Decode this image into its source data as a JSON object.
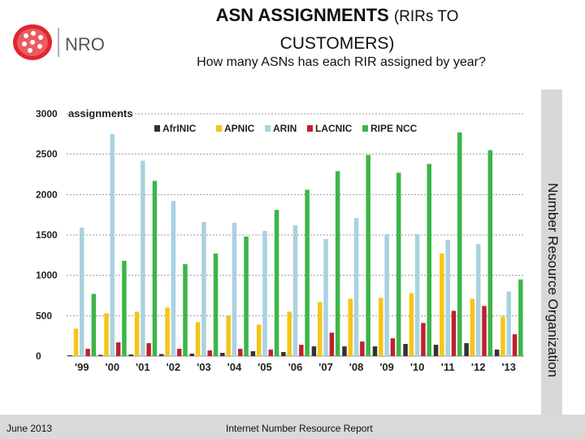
{
  "header": {
    "logo_text": "NRO",
    "title_line1_main": "ASN ASSIGNMENTS",
    "title_line1_small": "(RIRs TO",
    "title_line2": "CUSTOMERS)",
    "subtitle": "How many ASNs has each RIR assigned by year?"
  },
  "side_label": "Number Resource Organization",
  "footer": {
    "date": "June 2013",
    "report": "Internet Number Resource Report"
  },
  "colors": {
    "AfriNIC": "#333333",
    "APNIC": "#f5c518",
    "ARIN": "#a9d2e0",
    "LACNIC": "#c0202e",
    "RIPE NCC": "#3db54a"
  },
  "chart_data": {
    "type": "bar",
    "ylabel": "assignments",
    "xlabel": "",
    "ylim": [
      0,
      3000
    ],
    "yticks": [
      0,
      500,
      1000,
      1500,
      2000,
      2500,
      3000
    ],
    "grid": true,
    "legend_position": "top",
    "categories": [
      "'99",
      "'00",
      "'01",
      "'02",
      "'03",
      "'04",
      "'05",
      "'06",
      "'07",
      "'08",
      "'09",
      "'10",
      "'11",
      "'12",
      "'13"
    ],
    "series": [
      {
        "name": "AfrINIC",
        "values": [
          10,
          15,
          20,
          25,
          30,
          40,
          60,
          50,
          120,
          120,
          120,
          150,
          140,
          160,
          80
        ]
      },
      {
        "name": "APNIC",
        "values": [
          340,
          530,
          550,
          600,
          420,
          500,
          390,
          550,
          670,
          710,
          720,
          780,
          1270,
          710,
          490
        ]
      },
      {
        "name": "ARIN",
        "values": [
          1590,
          2750,
          2420,
          1920,
          1660,
          1650,
          1550,
          1620,
          1450,
          1710,
          1510,
          1510,
          1440,
          1390,
          800
        ]
      },
      {
        "name": "LACNIC",
        "values": [
          90,
          170,
          160,
          90,
          70,
          90,
          80,
          140,
          290,
          180,
          220,
          410,
          560,
          620,
          270
        ]
      },
      {
        "name": "RIPE NCC",
        "values": [
          770,
          1180,
          2170,
          1140,
          1270,
          1480,
          1810,
          2060,
          2290,
          2490,
          2270,
          2380,
          2770,
          2550,
          950
        ]
      }
    ]
  }
}
